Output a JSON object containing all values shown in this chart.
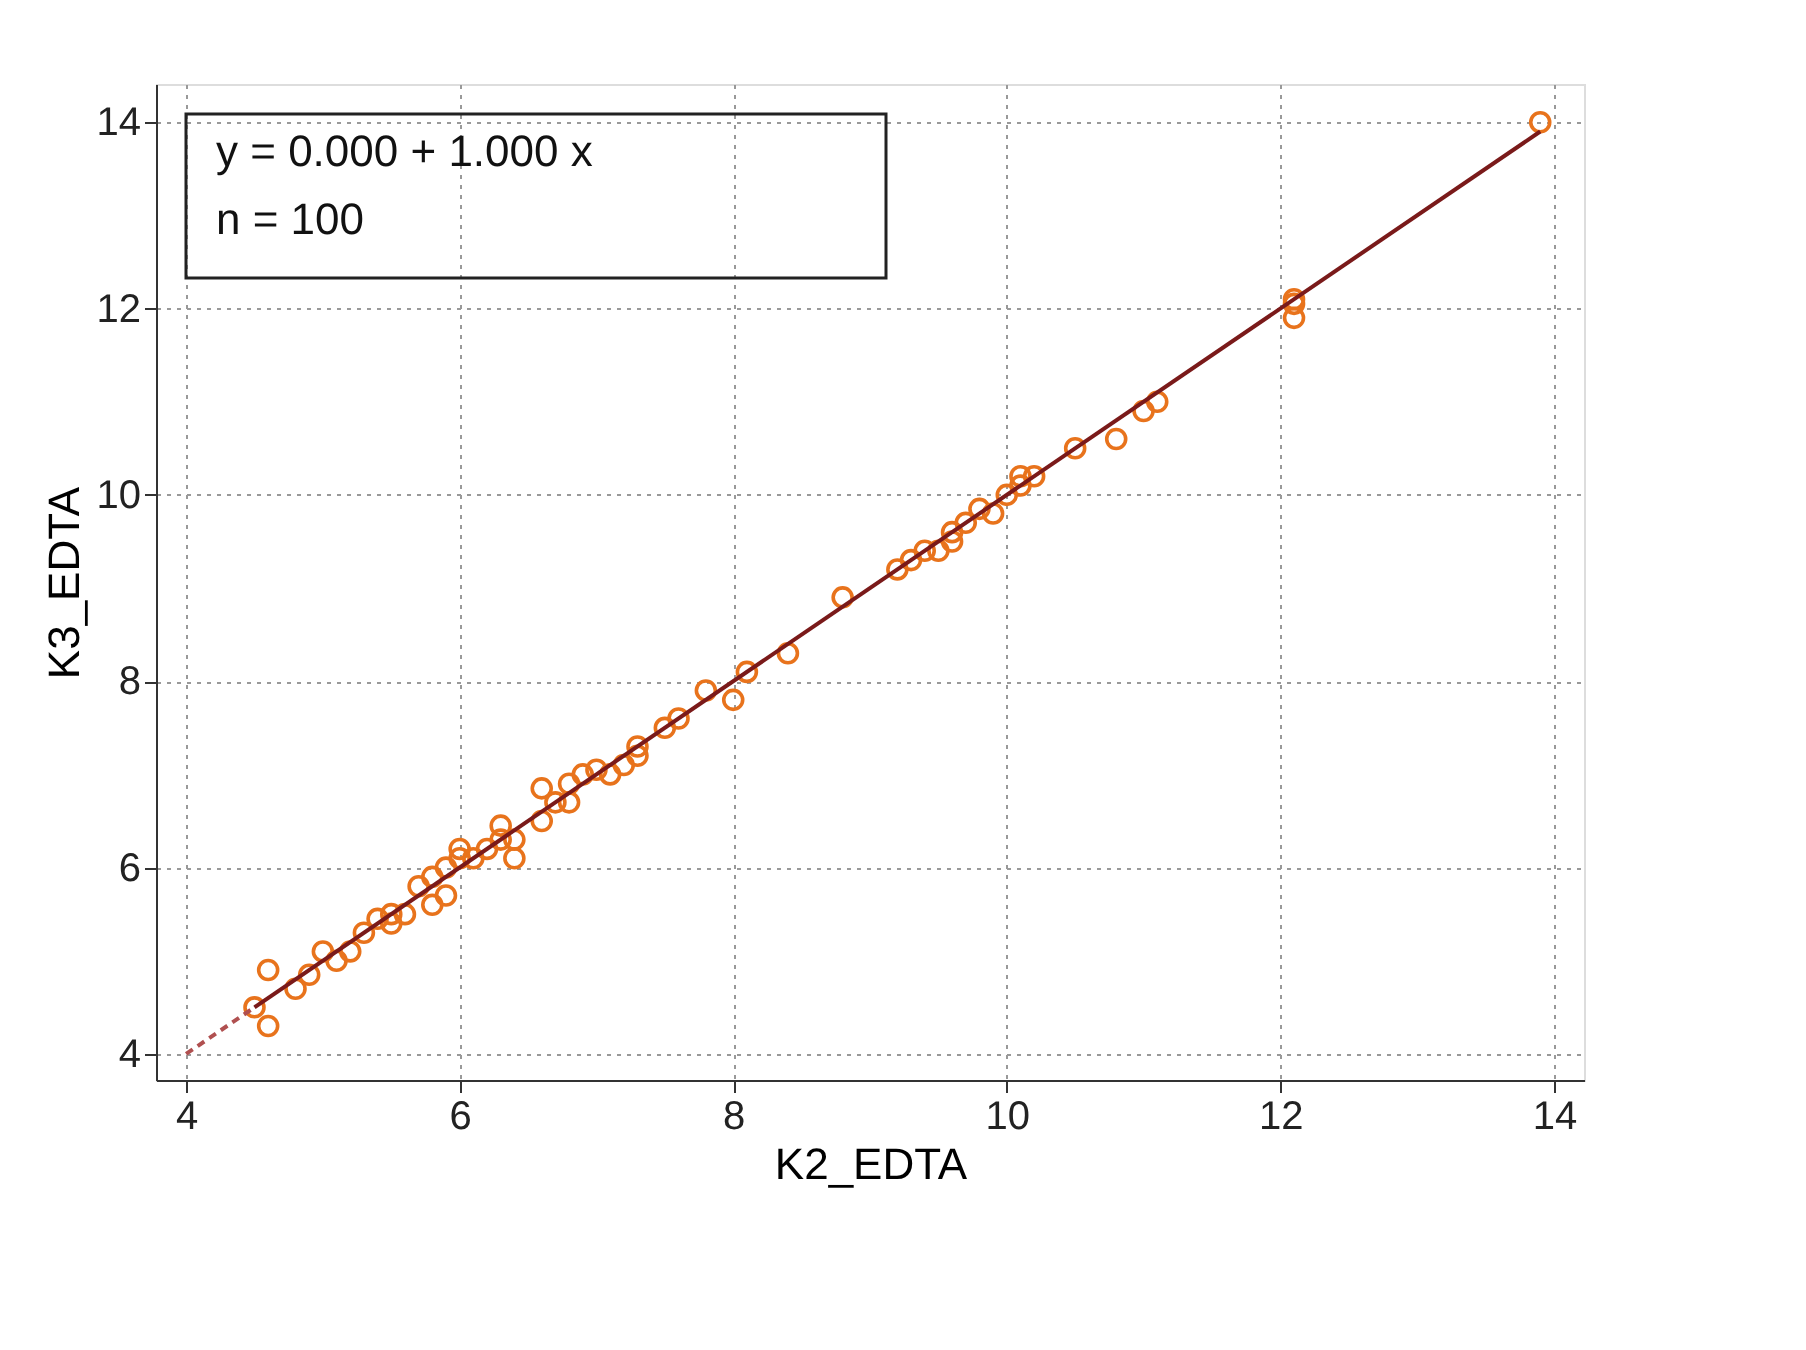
{
  "chart_data": {
    "type": "scatter",
    "xlabel": "K2_EDTA",
    "ylabel": "K3_EDTA",
    "xlim": [
      3.78,
      14.22
    ],
    "ylim": [
      3.72,
      14.41
    ],
    "xticks": [
      4,
      6,
      8,
      10,
      12,
      14
    ],
    "yticks": [
      4,
      6,
      8,
      10,
      12,
      14
    ],
    "grid": true,
    "annotations": [
      "y = 0.000  +  1.000  x",
      "n = 100"
    ],
    "series": [
      {
        "color": "#e8731c",
        "marker": "circle",
        "x": [
          4.5,
          4.6,
          4.6,
          4.8,
          4.9,
          5.0,
          5.1,
          5.2,
          5.3,
          5.4,
          5.5,
          5.5,
          5.6,
          5.7,
          5.8,
          5.8,
          5.9,
          5.9,
          6.0,
          6.0,
          6.1,
          6.2,
          6.3,
          6.3,
          6.4,
          6.4,
          6.6,
          6.6,
          6.7,
          6.8,
          6.8,
          6.9,
          7.0,
          7.1,
          7.2,
          7.3,
          7.3,
          7.5,
          7.6,
          7.8,
          8.0,
          8.1,
          8.4,
          8.8,
          9.2,
          9.3,
          9.4,
          9.5,
          9.6,
          9.6,
          9.7,
          9.8,
          9.9,
          10.0,
          10.1,
          10.1,
          10.2,
          10.5,
          10.8,
          11.0,
          11.1,
          12.1,
          12.1,
          12.1,
          13.9
        ],
        "values": [
          4.5,
          4.9,
          4.3,
          4.7,
          4.85,
          5.1,
          5.0,
          5.1,
          5.3,
          5.45,
          5.4,
          5.5,
          5.5,
          5.8,
          5.6,
          5.9,
          5.7,
          6.0,
          6.1,
          6.2,
          6.1,
          6.2,
          6.3,
          6.45,
          6.1,
          6.3,
          6.5,
          6.85,
          6.7,
          6.7,
          6.9,
          7.0,
          7.05,
          7.0,
          7.1,
          7.2,
          7.3,
          7.5,
          7.6,
          7.9,
          7.8,
          8.1,
          8.3,
          8.9,
          9.2,
          9.3,
          9.4,
          9.4,
          9.6,
          9.5,
          9.7,
          9.85,
          9.8,
          10.0,
          10.2,
          10.1,
          10.2,
          10.5,
          10.6,
          10.9,
          11.0,
          12.05,
          12.1,
          11.9,
          14.0
        ]
      },
      {
        "type": "line",
        "color": "#7a1a1a",
        "line_style": "solid",
        "x": [
          4.5,
          13.9
        ],
        "values": [
          4.5,
          13.9
        ]
      },
      {
        "type": "line",
        "color": "#b05050",
        "line_style": "dashed",
        "x": [
          4.0,
          4.5
        ],
        "values": [
          4.0,
          4.5
        ]
      }
    ]
  }
}
